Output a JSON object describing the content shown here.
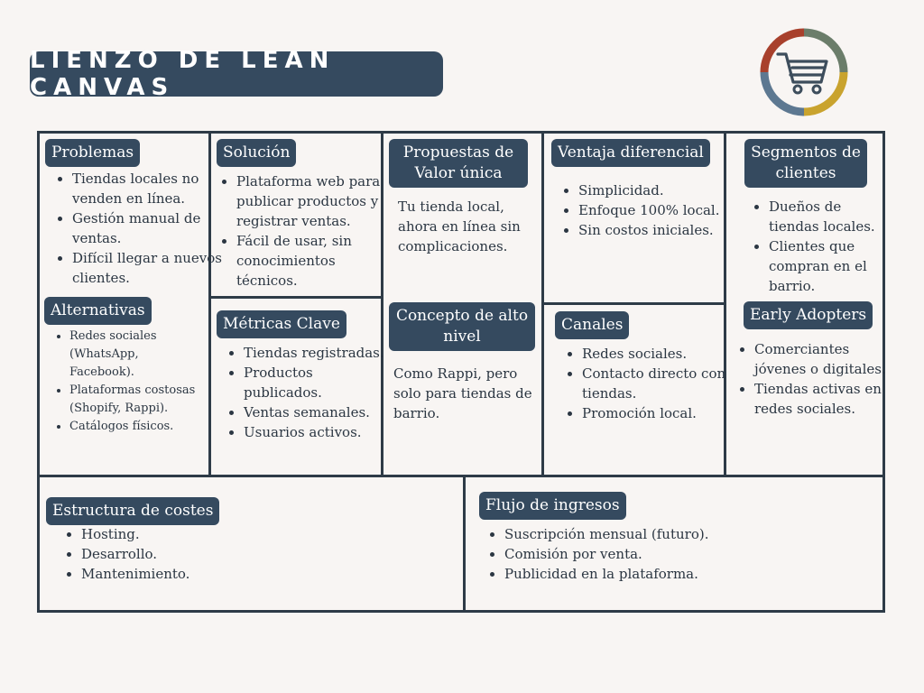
{
  "title": "LIENZO DE LEAN CANVAS",
  "icons": {
    "logo": "shopping-cart-icon",
    "ring_colors": [
      "#6b7d6a",
      "#c9a32e",
      "#5d7891",
      "#a8402c"
    ]
  },
  "problemas": {
    "label": "Problemas",
    "items": [
      "Tiendas locales no venden en línea.",
      "Gestión manual de ventas.",
      "Difícil llegar a nuevos clientes."
    ]
  },
  "alternativas": {
    "label": "Alternativas",
    "items": [
      "Redes sociales (WhatsApp, Facebook).",
      "Plataformas costosas (Shopify, Rappi).",
      "Catálogos físicos."
    ]
  },
  "solucion": {
    "label": "Solución",
    "items": [
      "Plataforma web para publicar productos y registrar ventas.",
      "Fácil de usar, sin conocimientos técnicos."
    ]
  },
  "metricas": {
    "label": "Métricas Clave",
    "items": [
      "Tiendas registradas.",
      "Productos publicados.",
      "Ventas semanales.",
      "Usuarios activos."
    ]
  },
  "propuesta": {
    "label": "Propuestas de Valor única",
    "text": "Tu tienda local, ahora en línea sin complicaciones."
  },
  "concepto": {
    "label": "Concepto de alto nivel",
    "text": "Como Rappi, pero solo para tiendas de barrio."
  },
  "ventaja": {
    "label": "Ventaja diferencial",
    "items": [
      "Simplicidad.",
      "Enfoque 100% local.",
      "Sin costos iniciales."
    ]
  },
  "canales": {
    "label": "Canales",
    "items": [
      "Redes sociales.",
      "Contacto directo con tiendas.",
      "Promoción local."
    ]
  },
  "segmentos": {
    "label": "Segmentos de clientes",
    "items": [
      "Dueños de tiendas locales.",
      "Clientes que compran en el barrio."
    ]
  },
  "early": {
    "label": "Early Adopters",
    "items": [
      "Comerciantes jóvenes o digitales.",
      "Tiendas activas en redes sociales."
    ]
  },
  "costes": {
    "label": "Estructura de costes",
    "items": [
      "Hosting.",
      "Desarrollo.",
      "Mantenimiento."
    ]
  },
  "ingresos": {
    "label": "Flujo de ingresos",
    "items": [
      "Suscripción mensual (futuro).",
      "Comisión por venta.",
      "Publicidad en la plataforma."
    ]
  }
}
